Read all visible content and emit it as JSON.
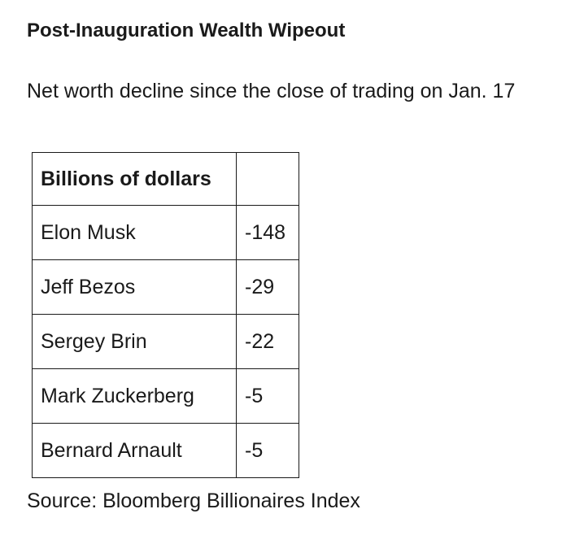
{
  "header": {
    "title": "Post-Inauguration Wealth Wipeout",
    "subtitle": "Net worth decline since the close of trading on Jan. 17"
  },
  "table": {
    "header": [
      "Billions of dollars",
      ""
    ],
    "rows": [
      {
        "name": "Elon Musk",
        "value": "-148"
      },
      {
        "name": "Jeff Bezos",
        "value": "-29"
      },
      {
        "name": "Sergey Brin",
        "value": "-22"
      },
      {
        "name": "Mark Zuckerberg",
        "value": "-5"
      },
      {
        "name": "Bernard Arnault",
        "value": "-5"
      }
    ]
  },
  "footer": {
    "source": "Source: Bloomberg Billionaires Index"
  },
  "colors": {
    "text": "#1a1a1a",
    "border": "#1a1a1a",
    "background": "#ffffff"
  },
  "chart_data": {
    "type": "table",
    "title": "Post-Inauguration Wealth Wipeout",
    "subtitle": "Net worth decline since the close of trading on Jan. 17",
    "unit_label": "Billions of dollars",
    "categories": [
      "Elon Musk",
      "Jeff Bezos",
      "Sergey Brin",
      "Mark Zuckerberg",
      "Bernard Arnault"
    ],
    "values": [
      -148,
      -29,
      -22,
      -5,
      -5
    ],
    "source": "Source: Bloomberg Billionaires Index",
    "layout": {
      "grid": "full-borders",
      "legend": "none",
      "value_column_header": ""
    }
  }
}
